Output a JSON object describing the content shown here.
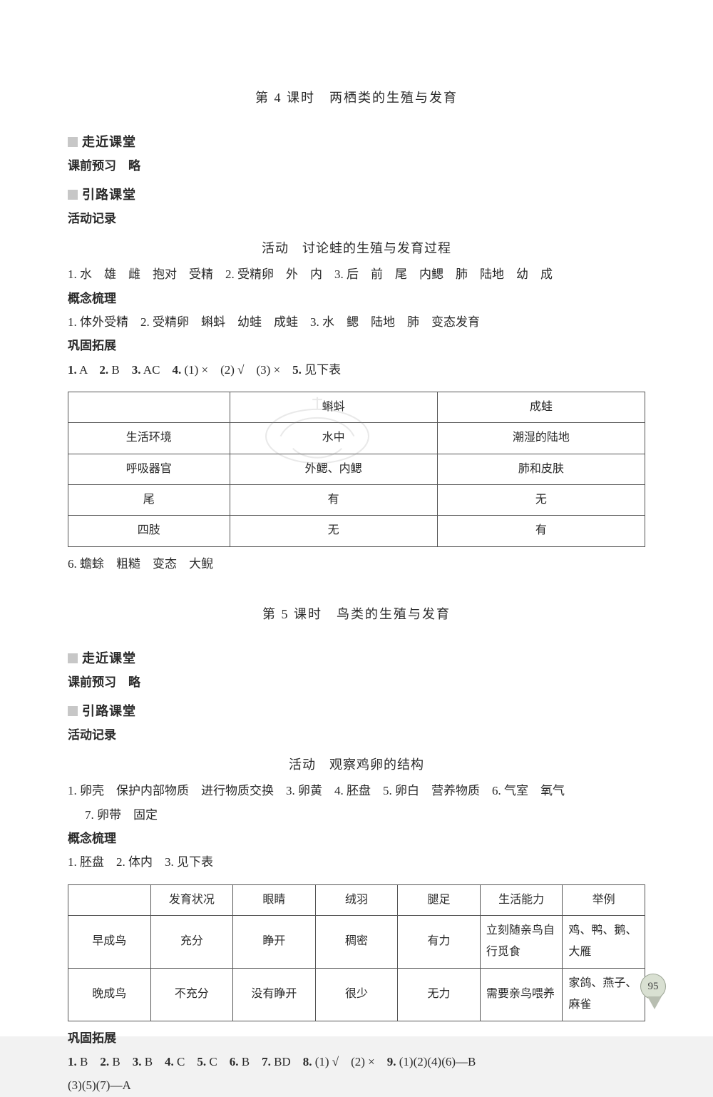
{
  "page_number": "95",
  "lesson4": {
    "title": "第 4 课时　两栖类的生殖与发育",
    "sec_walk": "走近课堂",
    "pre_study": "课前预习　略",
    "sec_guide": "引路课堂",
    "activity_record": "活动记录",
    "activity_title": "活动　讨论蛙的生殖与发育过程",
    "line1": "1. 水　雄　雌　抱对　受精　2. 受精卵　外　内　3. 后　前　尾　内鳃　肺　陆地　幼　成",
    "concept_header": "概念梳理",
    "concept_line": "1. 体外受精　2. 受精卵　蝌蚪　幼蛙　成蛙　3. 水　鳃　陆地　肺　变态发育",
    "consolidate_header": "巩固拓展",
    "consolidate_line": "1. A　2. B　3. AC　4. (1) ×　(2) √　(3) ×　5. 见下表",
    "table": {
      "col_headers": [
        "",
        "蝌蚪",
        "成蛙"
      ],
      "rows": [
        [
          "生活环境",
          "水中",
          "潮湿的陆地"
        ],
        [
          "呼吸器官",
          "外鳃、内鳃",
          "肺和皮肤"
        ],
        [
          "尾",
          "有",
          "无"
        ],
        [
          "四肢",
          "无",
          "有"
        ]
      ],
      "border_color": "#555555",
      "font_size": 16
    },
    "after_table": "6. 蟾蜍　粗糙　变态　大鲵"
  },
  "lesson5": {
    "title": "第 5 课时　鸟类的生殖与发育",
    "sec_walk": "走近课堂",
    "pre_study": "课前预习　略",
    "sec_guide": "引路课堂",
    "activity_record": "活动记录",
    "activity_title": "活动　观察鸡卵的结构",
    "line1": "1. 卵壳　保护内部物质　进行物质交换　3. 卵黄　4. 胚盘　5. 卵白　营养物质　6. 气室　氧气",
    "line1b": "7. 卵带　固定",
    "concept_header": "概念梳理",
    "concept_line": "1. 胚盘　2. 体内　3. 见下表",
    "table": {
      "col_headers": [
        "",
        "发育状况",
        "眼睛",
        "绒羽",
        "腿足",
        "生活能力",
        "举例"
      ],
      "rows": [
        [
          "早成鸟",
          "充分",
          "睁开",
          "稠密",
          "有力",
          "立刻随亲鸟自行觅食",
          "鸡、鸭、鹅、大雁"
        ],
        [
          "晚成鸟",
          "不充分",
          "没有睁开",
          "很少",
          "无力",
          "需要亲鸟喂养",
          "家鸽、燕子、麻雀"
        ]
      ],
      "border_color": "#555555",
      "font_size": 16
    },
    "consolidate_header": "巩固拓展",
    "consolidate_line1": "1. B　2. B　3. B　4. C　5. C　6. B　7. BD　8. (1) √　(2) ×　9. (1)(2)(4)(6)—B",
    "consolidate_line2": "(3)(5)(7)—A"
  },
  "colors": {
    "page_bg": "#ffffff",
    "text": "#2a2a2a",
    "square": "#c7c7c7",
    "badge_fill": "#d9e0d2",
    "badge_border": "#9aa393"
  }
}
